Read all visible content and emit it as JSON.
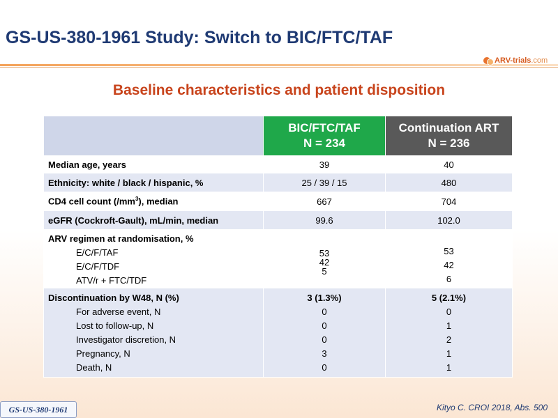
{
  "slide": {
    "title": "GS-US-380-1961 Study: Switch to BIC/FTC/TAF",
    "subtitle": "Baseline characteristics and patient disposition",
    "logo_text_main": "ARV-trials",
    "logo_text_dot": ".com",
    "citation": "Kityo C. CROI 2018, Abs. 500",
    "study_tag": "GS-US-380-1961"
  },
  "colors": {
    "title": "#1f3a73",
    "subtitle": "#c8441c",
    "arm1_header": "#1fa84a",
    "arm2_header": "#595959",
    "row_alt": "#e3e7f3"
  },
  "table": {
    "headers": {
      "arm1_line1": "BIC/FTC/TAF",
      "arm1_line2": "N = 234",
      "arm2_line1": "Continuation ART",
      "arm2_line2": "N = 236"
    },
    "rows": {
      "age": {
        "label": "Median age, years",
        "arm1": "39",
        "arm2": "40"
      },
      "ethnicity": {
        "label": "Ethnicity: white / black / hispanic, %",
        "arm1": "25 / 39 / 15",
        "arm2": "480"
      },
      "cd4": {
        "label_pre": "CD4 cell count (/mm",
        "label_sup": "3",
        "label_post": "), median",
        "arm1": "667",
        "arm2": "704"
      },
      "egfr": {
        "label": "eGFR (Cockroft-Gault), mL/min, median",
        "arm1": "99.6",
        "arm2": "102.0"
      },
      "regimen": {
        "label": "ARV regimen at randomisation, %",
        "items": [
          {
            "label": "E/C/F/TAF",
            "arm1": "53",
            "arm2": "53"
          },
          {
            "label": "E/C/F/TDF",
            "arm1": "42",
            "arm2": "42"
          },
          {
            "label": "ATV/r + FTC/TDF",
            "arm1": "5",
            "arm2": "6"
          }
        ]
      },
      "discontinuation": {
        "label": "Discontinuation by W48, N (%)",
        "arm1": "3 (1.3%)",
        "arm2": "5 (2.1%)",
        "items": [
          {
            "label": "For adverse event, N",
            "arm1": "0",
            "arm2": "0"
          },
          {
            "label": "Lost to follow-up, N",
            "arm1": "0",
            "arm2": "1"
          },
          {
            "label": "Investigator discretion, N",
            "arm1": "0",
            "arm2": "2"
          },
          {
            "label": "Pregnancy, N",
            "arm1": "3",
            "arm2": "1"
          },
          {
            "label": "Death, N",
            "arm1": "0",
            "arm2": "1"
          }
        ]
      }
    }
  }
}
